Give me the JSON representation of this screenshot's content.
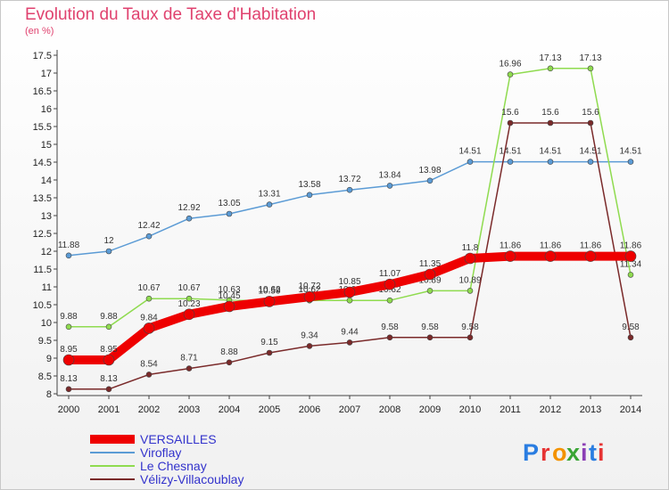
{
  "chart_data": {
    "type": "line",
    "title": "Evolution du Taux de Taxe d'Habitation",
    "subtitle": "(en %)",
    "x": [
      "2000",
      "2001",
      "2002",
      "2003",
      "2004",
      "2005",
      "2006",
      "2007",
      "2008",
      "2009",
      "2010",
      "2011",
      "2012",
      "2013",
      "2014"
    ],
    "ylim": [
      8,
      17.5
    ],
    "y_ticks": [
      "8",
      "8.5",
      "9",
      "9.5",
      "10",
      "10.5",
      "11",
      "11.5",
      "12",
      "12.5",
      "13",
      "13.5",
      "14",
      "14.5",
      "15",
      "15.5",
      "16",
      "16.5",
      "17",
      "17.5"
    ],
    "grid": false,
    "legend_position": "bottom-left",
    "series": [
      {
        "name": "Viroflay",
        "color": "#5b9bd5",
        "values": [
          11.88,
          12,
          12.42,
          12.92,
          13.05,
          13.31,
          13.58,
          13.72,
          13.84,
          13.98,
          14.51,
          14.51,
          14.51,
          14.51,
          14.51
        ],
        "labels": [
          "11.88",
          "12",
          "12.42",
          "12.92",
          "13.05",
          "13.31",
          "13.58",
          "13.72",
          "13.84",
          "13.98",
          "14.51",
          "14.51",
          "14.51",
          "14.51",
          "14.51"
        ]
      },
      {
        "name": "Le Chesnay",
        "color": "#8fdb4f",
        "values": [
          9.88,
          9.88,
          10.67,
          10.67,
          10.63,
          10.62,
          10.62,
          10.62,
          10.62,
          10.89,
          10.89,
          16.96,
          17.13,
          17.13,
          11.34
        ],
        "labels": [
          "9.88",
          "9.88",
          "10.67",
          "10.67",
          "10.63",
          "10.62",
          "10.62",
          "10.62",
          "10.62",
          "10.89",
          "10.89",
          "16.96",
          "17.13",
          "17.13",
          "11.34"
        ]
      },
      {
        "name": "Vélizy-Villacoublay",
        "color": "#7a2a2a",
        "values": [
          8.13,
          8.13,
          8.54,
          8.71,
          8.88,
          9.15,
          9.34,
          9.44,
          9.58,
          9.58,
          9.58,
          15.6,
          15.6,
          15.6,
          9.58
        ],
        "labels": [
          "8.13",
          "8.13",
          "8.54",
          "8.71",
          "8.88",
          "9.15",
          "9.34",
          "9.44",
          "9.58",
          "9.58",
          "9.58",
          "15.6",
          "15.6",
          "15.6",
          "9.58"
        ]
      },
      {
        "name": "VERSAILLES",
        "color": "#ee0000",
        "values": [
          8.95,
          8.95,
          9.84,
          10.23,
          10.45,
          10.59,
          10.72,
          10.85,
          11.07,
          11.35,
          11.8,
          11.86,
          11.86,
          11.86,
          11.86
        ],
        "labels": [
          "8.95",
          "8.95",
          "9.84",
          "10.23",
          "10.45",
          "10.59",
          "10.72",
          "10.85",
          "11.07",
          "11.35",
          "11.8",
          "11.86",
          "11.86",
          "11.86",
          "11.86"
        ]
      }
    ],
    "legend": [
      "VERSAILLES",
      "Viroflay",
      "Le Chesnay",
      "Vélizy-Villacoublay"
    ]
  },
  "brand": {
    "text": "Proxiti",
    "letters": [
      "P",
      "r",
      "o",
      "x",
      "i",
      "t",
      "i"
    ],
    "colors": [
      "#2a7de1",
      "#e63333",
      "#f39200",
      "#3aa535",
      "#8b3fb5",
      "#2a7de1",
      "#e63333"
    ]
  }
}
